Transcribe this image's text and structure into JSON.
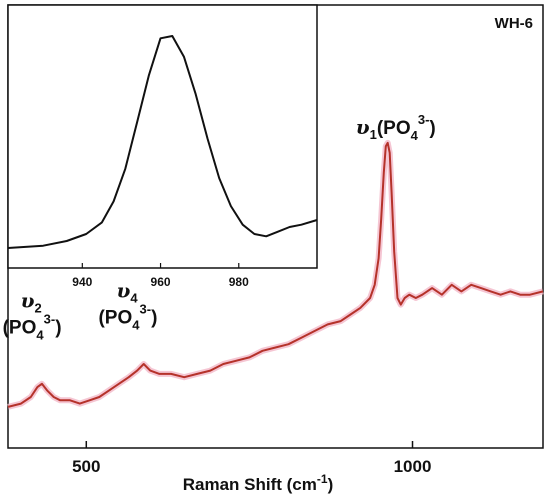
{
  "chart_data": [
    {
      "type": "line",
      "name_label": "WH-6",
      "xlabel": "Raman Shift (cm",
      "xlabel_sup": "-1",
      "xlabel_end": ")",
      "ylabel": "",
      "xlim": [
        380,
        1200
      ],
      "ylim": [
        0,
        1
      ],
      "xticks": [
        500,
        1000
      ],
      "yticks": [],
      "grid": false,
      "line_color": "#b5322a",
      "glow_color": "#f3b8c8",
      "annotations": [
        {
          "symbol": "υ",
          "sub": "1",
          "text": "(PO",
          "sub2": "4",
          "sup": "3-",
          "close": ")",
          "x": 962,
          "y": 0.86
        },
        {
          "symbol": "υ",
          "sub": "2",
          "text": "(PO",
          "sub2": "4",
          "sup": "3-",
          "close": ")",
          "x": 430,
          "y": 0.28
        },
        {
          "symbol": "υ",
          "sub": "4",
          "text": "(PO",
          "sub2": "4",
          "sup": "3-",
          "close": ")",
          "x": 580,
          "y": 0.31
        }
      ],
      "series": [
        {
          "x": [
            380,
            400,
            415,
            425,
            432,
            440,
            450,
            460,
            475,
            490,
            505,
            520,
            535,
            550,
            565,
            578,
            588,
            598,
            612,
            630,
            650,
            670,
            690,
            710,
            730,
            750,
            770,
            790,
            810,
            830,
            850,
            870,
            890,
            905,
            920,
            935,
            942,
            948,
            952,
            956,
            959,
            962,
            965,
            968,
            972,
            977,
            982,
            988,
            995,
            1005,
            1015,
            1030,
            1045,
            1060,
            1075,
            1090,
            1105,
            1120,
            1135,
            1150,
            1165,
            1180,
            1200
          ],
          "y": [
            0.07,
            0.08,
            0.1,
            0.13,
            0.14,
            0.12,
            0.1,
            0.09,
            0.09,
            0.08,
            0.09,
            0.1,
            0.12,
            0.14,
            0.16,
            0.18,
            0.2,
            0.18,
            0.17,
            0.17,
            0.16,
            0.17,
            0.18,
            0.2,
            0.21,
            0.22,
            0.24,
            0.25,
            0.26,
            0.28,
            0.3,
            0.32,
            0.33,
            0.35,
            0.37,
            0.4,
            0.44,
            0.52,
            0.64,
            0.78,
            0.86,
            0.87,
            0.84,
            0.72,
            0.54,
            0.4,
            0.38,
            0.4,
            0.41,
            0.4,
            0.41,
            0.43,
            0.41,
            0.44,
            0.42,
            0.44,
            0.43,
            0.42,
            0.41,
            0.42,
            0.41,
            0.41,
            0.42
          ]
        }
      ]
    },
    {
      "type": "line",
      "role": "inset",
      "xlabel": "",
      "ylabel": "",
      "xlim": [
        921,
        1000
      ],
      "ylim": [
        0,
        1
      ],
      "xticks": [
        940,
        960,
        980
      ],
      "yticks": [],
      "line_color": "#111111",
      "series": [
        {
          "x": [
            921,
            930,
            936,
            941,
            945,
            948,
            951,
            954,
            957,
            960,
            963,
            966,
            969,
            972,
            975,
            978,
            981,
            984,
            987,
            990,
            993,
            996,
            1000
          ],
          "y": [
            0.0,
            0.01,
            0.03,
            0.06,
            0.11,
            0.2,
            0.34,
            0.54,
            0.74,
            0.9,
            0.91,
            0.82,
            0.66,
            0.47,
            0.3,
            0.18,
            0.1,
            0.06,
            0.05,
            0.07,
            0.09,
            0.1,
            0.12
          ]
        }
      ]
    }
  ]
}
